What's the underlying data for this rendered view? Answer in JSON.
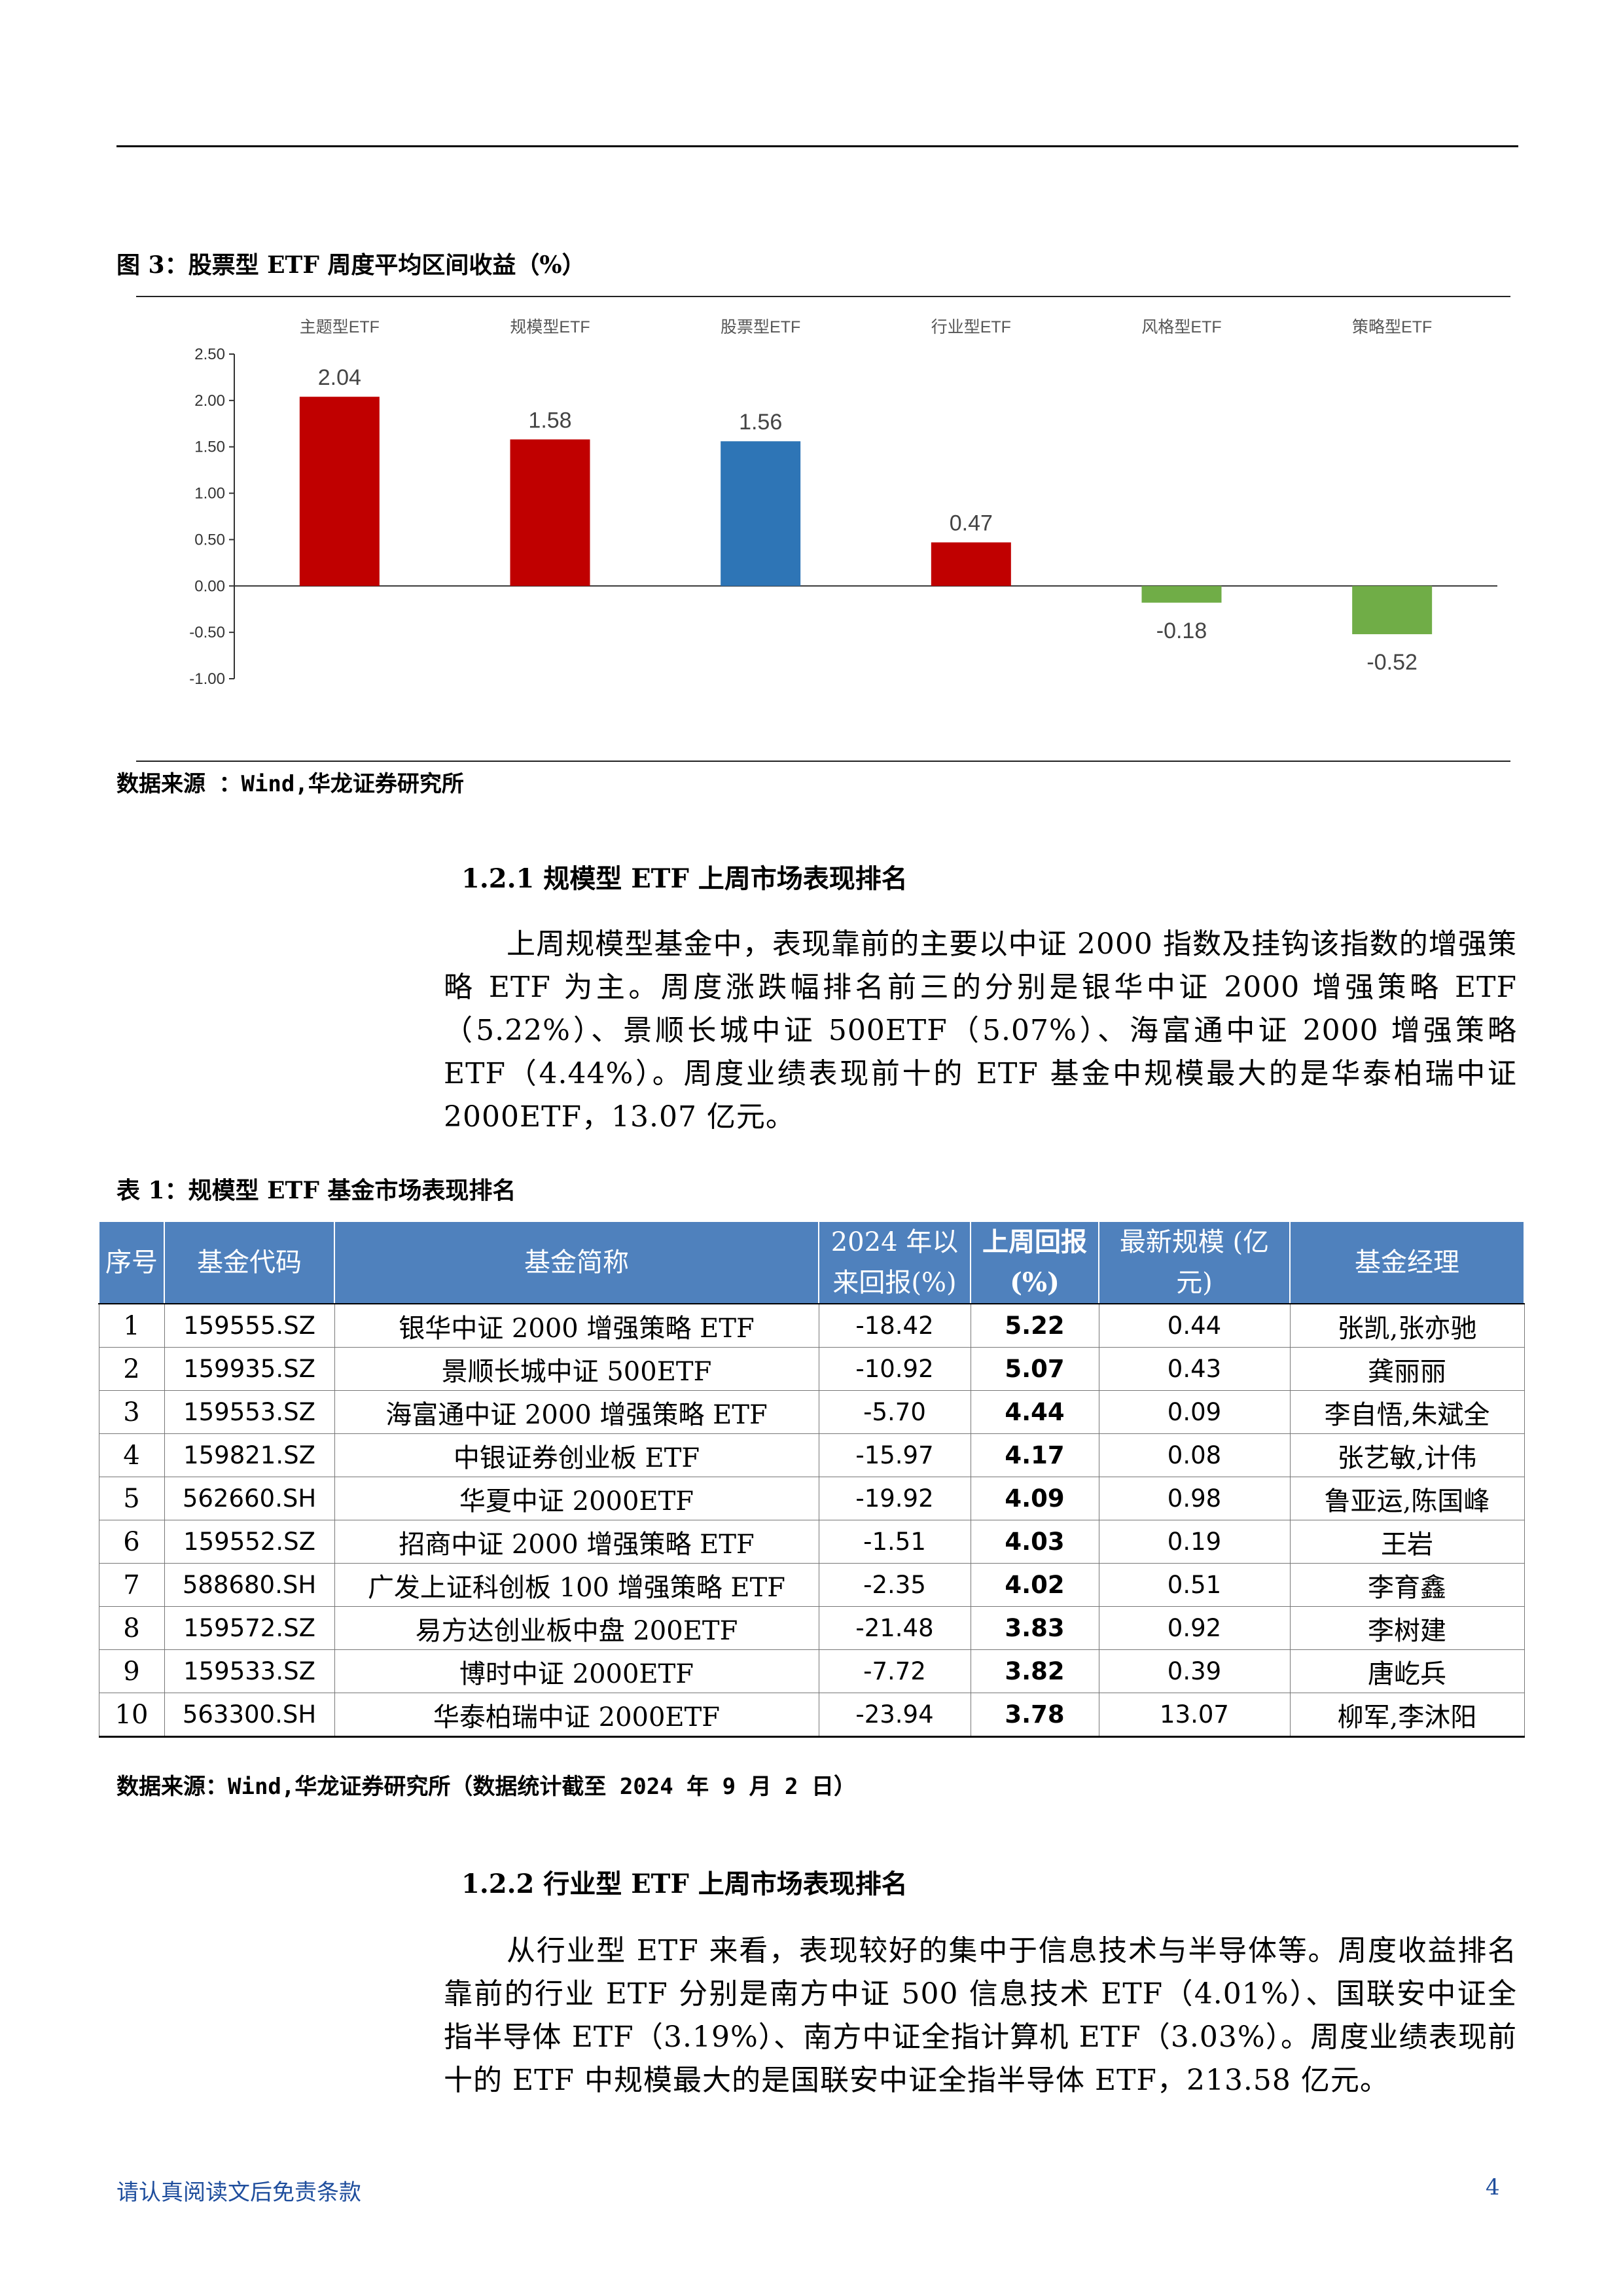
{
  "figure": {
    "title": "图 3：股票型 ETF 周度平均区间收益（%）",
    "source": "数据来源 ：Wind,华龙证券研究所"
  },
  "chart_data": {
    "type": "bar",
    "categories": [
      "主题型ETF",
      "规模型ETF",
      "股票型ETF",
      "行业型ETF",
      "风格型ETF",
      "策略型ETF"
    ],
    "values": [
      2.04,
      1.58,
      1.56,
      0.47,
      -0.18,
      -0.52
    ],
    "value_labels": [
      "2.04",
      "1.58",
      "1.56",
      "0.47",
      "-0.18",
      "-0.52"
    ],
    "colors": [
      "#c00000",
      "#c00000",
      "#2e75b6",
      "#c00000",
      "#70ad47",
      "#70ad47"
    ],
    "ylim": [
      -1.0,
      2.5
    ],
    "yticks": [
      "2.50",
      "2.00",
      "1.50",
      "1.00",
      "0.50",
      "0.00",
      "-0.50",
      "-1.00"
    ],
    "ytick_values": [
      2.5,
      2.0,
      1.5,
      1.0,
      0.5,
      0.0,
      -0.5,
      -1.0
    ],
    "category_axis_position": "top",
    "title": "",
    "xlabel": "",
    "ylabel": ""
  },
  "section1": {
    "heading": "1.2.1  规模型 ETF 上周市场表现排名",
    "paragraph": "上周规模型基金中，表现靠前的主要以中证 2000 指数及挂钩该指数的增强策略 ETF 为主。周度涨跌幅排名前三的分别是银华中证 2000 增强策略 ETF（5.22%）、景顺长城中证 500ETF（5.07%）、海富通中证 2000 增强策略 ETF（4.44%）。周度业绩表现前十的 ETF 基金中规模最大的是华泰柏瑞中证 2000ETF，13.07 亿元。"
  },
  "table": {
    "title": "表 1：规模型 ETF 基金市场表现排名",
    "headers": [
      "序号",
      "基金代码",
      "基金简称",
      "2024 年以来回报(%)",
      "上周回报 (%)",
      "最新规模 (亿元)",
      "基金经理"
    ],
    "rows": [
      [
        "1",
        "159555.SZ",
        "银华中证 2000 增强策略 ETF",
        "-18.42",
        "5.22",
        "0.44",
        "张凯,张亦驰"
      ],
      [
        "2",
        "159935.SZ",
        "景顺长城中证 500ETF",
        "-10.92",
        "5.07",
        "0.43",
        "龚丽丽"
      ],
      [
        "3",
        "159553.SZ",
        "海富通中证 2000 增强策略 ETF",
        "-5.70",
        "4.44",
        "0.09",
        "李自悟,朱斌全"
      ],
      [
        "4",
        "159821.SZ",
        "中银证券创业板 ETF",
        "-15.97",
        "4.17",
        "0.08",
        "张艺敏,计伟"
      ],
      [
        "5",
        "562660.SH",
        "华夏中证 2000ETF",
        "-19.92",
        "4.09",
        "0.98",
        "鲁亚运,陈国峰"
      ],
      [
        "6",
        "159552.SZ",
        "招商中证 2000 增强策略 ETF",
        "-1.51",
        "4.03",
        "0.19",
        "王岩"
      ],
      [
        "7",
        "588680.SH",
        "广发上证科创板 100 增强策略 ETF",
        "-2.35",
        "4.02",
        "0.51",
        "李育鑫"
      ],
      [
        "8",
        "159572.SZ",
        "易方达创业板中盘 200ETF",
        "-21.48",
        "3.83",
        "0.92",
        "李树建"
      ],
      [
        "9",
        "159533.SZ",
        "博时中证 2000ETF",
        "-7.72",
        "3.82",
        "0.39",
        "唐屹兵"
      ],
      [
        "10",
        "563300.SH",
        "华泰柏瑞中证 2000ETF",
        "-23.94",
        "3.78",
        "13.07",
        "柳军,李沐阳"
      ]
    ],
    "source": "数据来源：Wind,华龙证券研究所（数据统计截至 2024 年 9 月 2 日）"
  },
  "section2": {
    "heading": "1.2.2  行业型 ETF 上周市场表现排名",
    "paragraph": "从行业型 ETF 来看，表现较好的集中于信息技术与半导体等。周度收益排名靠前的行业 ETF 分别是南方中证 500 信息技术 ETF（4.01%）、国联安中证全指半导体 ETF（3.19%）、南方中证全指计算机 ETF（3.03%）。周度业绩表现前十的 ETF 中规模最大的是国联安中证全指半导体 ETF，213.58 亿元。"
  },
  "footer": {
    "disclaimer": "请认真阅读文后免责条款",
    "page_number": "4"
  }
}
